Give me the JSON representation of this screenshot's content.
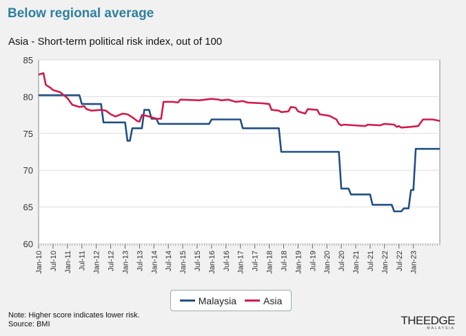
{
  "header": {
    "title": "Below regional average",
    "subtitle": "Asia - Short-term political risk index, out of 100"
  },
  "footer": {
    "note": "Note: Higher score indicates lower risk.",
    "source": "Source: BMI",
    "logo_main": "THEEDGE",
    "logo_sub": "MALAYSIA"
  },
  "colors": {
    "malaysia": "#1f4f82",
    "asia": "#d11a4a",
    "grid": "#dcdcdc",
    "axis": "#888888"
  },
  "chart_data": {
    "type": "line",
    "ylim": [
      60,
      85
    ],
    "yticks": [
      60,
      65,
      70,
      75,
      80,
      85
    ],
    "xlim": [
      "2010-01",
      "2023-12"
    ],
    "xtick_labels": [
      "Jan-10",
      "Jul-10",
      "Jan-11",
      "Jul-11",
      "Jan-12",
      "Jul-12",
      "Jan-13",
      "Jul-13",
      "Jan-14",
      "Jul-14",
      "Jan-15",
      "Jul-15",
      "Jan-16",
      "Jul-16",
      "Jan-17",
      "Jul-17",
      "Jan-18",
      "Jul-18",
      "Jan-19",
      "Jul-19",
      "Jan-20",
      "Jul-20",
      "Jan-21",
      "Jul-21",
      "Jan-22",
      "Jul-22",
      "Jan-23"
    ],
    "xticks": [
      "2010-01",
      "2010-07",
      "2011-01",
      "2011-07",
      "2012-01",
      "2012-07",
      "2013-01",
      "2013-07",
      "2014-01",
      "2014-07",
      "2015-01",
      "2015-07",
      "2016-01",
      "2016-07",
      "2017-01",
      "2017-07",
      "2018-01",
      "2018-07",
      "2019-01",
      "2019-07",
      "2020-01",
      "2020-07",
      "2021-01",
      "2021-07",
      "2022-01",
      "2022-07",
      "2023-01"
    ],
    "legend_position": "bottom",
    "series": [
      {
        "name": "Malaysia",
        "color": "#1f4f82",
        "points": [
          [
            "2010-01",
            80.2
          ],
          [
            "2011-06",
            80.2
          ],
          [
            "2011-07",
            79.0
          ],
          [
            "2012-03",
            79.0
          ],
          [
            "2012-04",
            76.5
          ],
          [
            "2013-01",
            76.5
          ],
          [
            "2013-02",
            74.0
          ],
          [
            "2013-03",
            74.0
          ],
          [
            "2013-04",
            75.7
          ],
          [
            "2013-08",
            75.7
          ],
          [
            "2013-09",
            78.2
          ],
          [
            "2013-11",
            78.2
          ],
          [
            "2013-12",
            77.0
          ],
          [
            "2014-02",
            77.0
          ],
          [
            "2014-03",
            76.3
          ],
          [
            "2015-12",
            76.3
          ],
          [
            "2016-01",
            76.9
          ],
          [
            "2017-01",
            76.9
          ],
          [
            "2017-02",
            75.7
          ],
          [
            "2018-05",
            75.7
          ],
          [
            "2018-06",
            72.5
          ],
          [
            "2020-06",
            72.5
          ],
          [
            "2020-07",
            67.5
          ],
          [
            "2020-10",
            67.5
          ],
          [
            "2020-11",
            66.7
          ],
          [
            "2021-07",
            66.7
          ],
          [
            "2021-08",
            65.3
          ],
          [
            "2022-04",
            65.3
          ],
          [
            "2022-05",
            64.4
          ],
          [
            "2022-08",
            64.4
          ],
          [
            "2022-09",
            64.8
          ],
          [
            "2022-11",
            64.8
          ],
          [
            "2022-12",
            67.3
          ],
          [
            "2023-01",
            67.3
          ],
          [
            "2023-02",
            72.9
          ],
          [
            "2023-12",
            72.9
          ]
        ]
      },
      {
        "name": "Asia",
        "color": "#d11a4a",
        "points": [
          [
            "2010-01",
            83.0
          ],
          [
            "2010-03",
            83.2
          ],
          [
            "2010-04",
            81.6
          ],
          [
            "2010-06",
            81.2
          ],
          [
            "2010-07",
            80.9
          ],
          [
            "2010-10",
            80.6
          ],
          [
            "2011-01",
            79.8
          ],
          [
            "2011-03",
            78.9
          ],
          [
            "2011-06",
            78.6
          ],
          [
            "2011-08",
            78.7
          ],
          [
            "2011-09",
            78.3
          ],
          [
            "2011-11",
            78.1
          ],
          [
            "2012-03",
            78.2
          ],
          [
            "2012-05",
            78.1
          ],
          [
            "2012-07",
            77.6
          ],
          [
            "2012-09",
            77.3
          ],
          [
            "2012-12",
            77.7
          ],
          [
            "2013-02",
            77.6
          ],
          [
            "2013-04",
            77.2
          ],
          [
            "2013-06",
            76.7
          ],
          [
            "2013-07",
            76.6
          ],
          [
            "2013-08",
            77.5
          ],
          [
            "2013-10",
            77.4
          ],
          [
            "2013-12",
            77.2
          ],
          [
            "2014-02",
            77.0
          ],
          [
            "2014-04",
            77.0
          ],
          [
            "2014-05",
            79.3
          ],
          [
            "2014-09",
            79.3
          ],
          [
            "2014-11",
            79.2
          ],
          [
            "2014-12",
            79.6
          ],
          [
            "2015-08",
            79.5
          ],
          [
            "2016-01",
            79.7
          ],
          [
            "2016-04",
            79.6
          ],
          [
            "2016-05",
            79.5
          ],
          [
            "2016-08",
            79.6
          ],
          [
            "2016-11",
            79.3
          ],
          [
            "2017-02",
            79.4
          ],
          [
            "2017-04",
            79.2
          ],
          [
            "2017-10",
            79.1
          ],
          [
            "2018-01",
            79.0
          ],
          [
            "2018-02",
            78.2
          ],
          [
            "2018-05",
            78.1
          ],
          [
            "2018-06",
            77.9
          ],
          [
            "2018-09",
            78.0
          ],
          [
            "2018-10",
            78.6
          ],
          [
            "2018-12",
            78.5
          ],
          [
            "2019-01",
            78.0
          ],
          [
            "2019-04",
            77.7
          ],
          [
            "2019-05",
            78.3
          ],
          [
            "2019-09",
            78.2
          ],
          [
            "2019-10",
            77.6
          ],
          [
            "2020-02",
            77.4
          ],
          [
            "2020-05",
            76.9
          ],
          [
            "2020-06",
            76.3
          ],
          [
            "2020-07",
            76.1
          ],
          [
            "2020-08",
            76.2
          ],
          [
            "2021-05",
            76.0
          ],
          [
            "2021-06",
            76.2
          ],
          [
            "2021-11",
            76.1
          ],
          [
            "2022-01",
            76.3
          ],
          [
            "2022-05",
            76.2
          ],
          [
            "2022-06",
            75.9
          ],
          [
            "2022-07",
            76.0
          ],
          [
            "2022-08",
            75.8
          ],
          [
            "2022-12",
            75.9
          ],
          [
            "2023-03",
            76.0
          ],
          [
            "2023-05",
            76.9
          ],
          [
            "2023-09",
            76.9
          ],
          [
            "2023-12",
            76.7
          ]
        ]
      }
    ]
  }
}
